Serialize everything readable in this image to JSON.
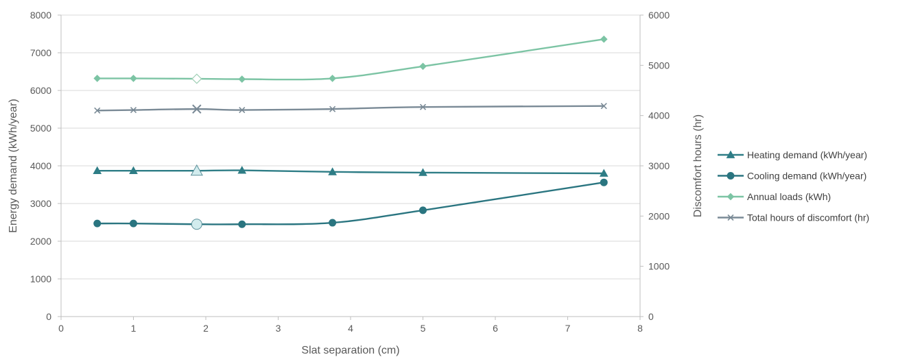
{
  "chart_data": {
    "type": "line",
    "xlabel": "Slat separation (cm)",
    "ylabel": "Energy demand (kWh/year)",
    "y2label": "Discomfort hours (hr)",
    "xlim": [
      0,
      8
    ],
    "ylim": [
      0,
      8000
    ],
    "y2lim": [
      0,
      6000
    ],
    "x_ticks": [
      0,
      1,
      2,
      3,
      4,
      5,
      6,
      7,
      8
    ],
    "y_ticks": [
      0,
      1000,
      2000,
      3000,
      4000,
      5000,
      6000,
      7000,
      8000
    ],
    "y2_ticks": [
      0,
      1000,
      2000,
      3000,
      4000,
      5000,
      6000
    ],
    "grid": "horizontal",
    "legend_position": "right",
    "x": [
      0.5,
      1,
      1.875,
      2.5,
      3.75,
      5,
      7.5
    ],
    "highlight_index": 2,
    "series": [
      {
        "name": "Heating demand (kWh/year)",
        "axis": "left",
        "marker": "triangle",
        "color": "#2e7d86",
        "values": [
          3870,
          3870,
          3870,
          3880,
          3840,
          3820,
          3800
        ]
      },
      {
        "name": "Cooling demand (kWh/year)",
        "axis": "left",
        "marker": "circle",
        "color": "#2a7580",
        "values": [
          2470,
          2470,
          2450,
          2450,
          2490,
          2820,
          3560
        ]
      },
      {
        "name": "Annual loads (kWh)",
        "axis": "left",
        "marker": "diamond",
        "color": "#7cc4a4",
        "values": [
          6320,
          6320,
          6310,
          6300,
          6320,
          6640,
          7360
        ]
      },
      {
        "name": "Total hours of discomfort (hr)",
        "axis": "right",
        "marker": "x",
        "color": "#7a8a96",
        "values": [
          4100,
          4110,
          4130,
          4110,
          4130,
          4170,
          4190
        ]
      }
    ]
  }
}
